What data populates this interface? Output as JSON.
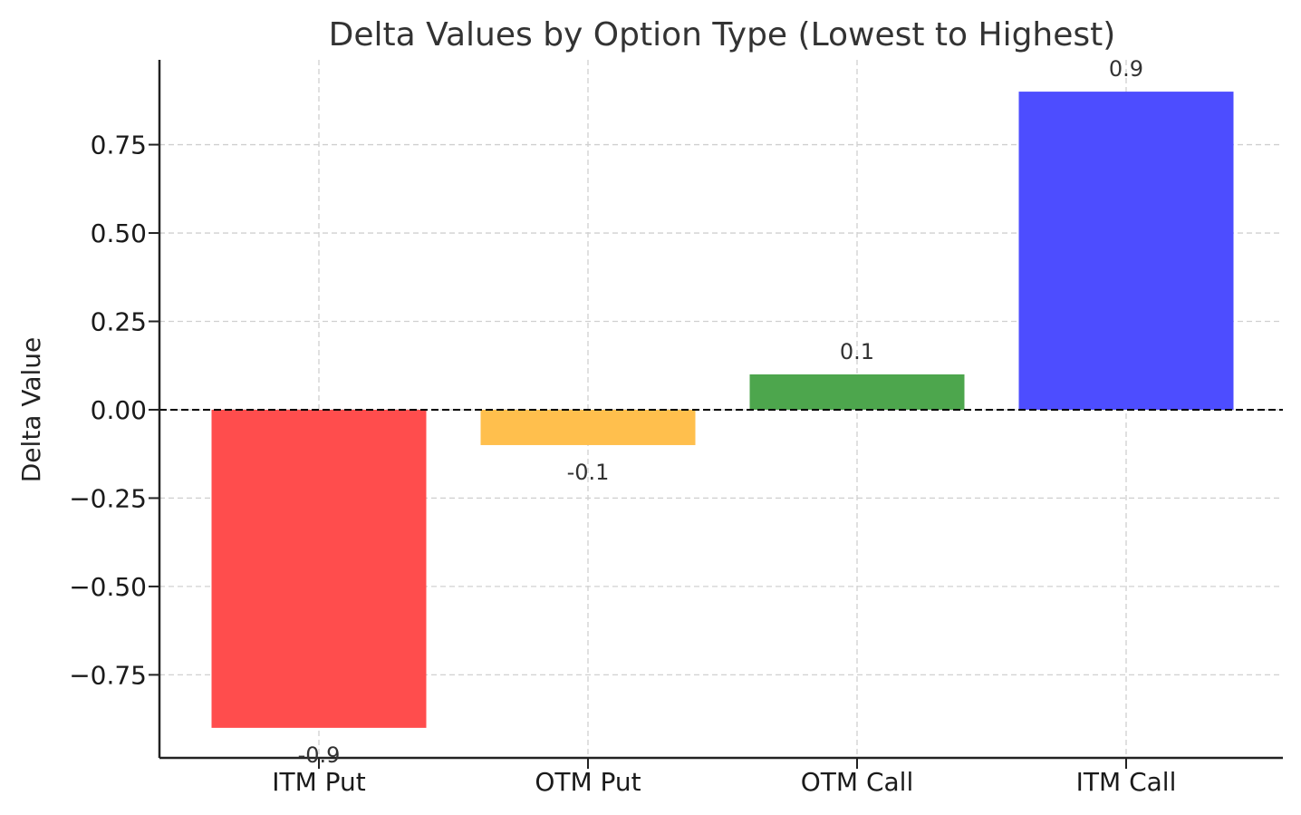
{
  "chart_data": {
    "type": "bar",
    "title": "Delta Values by Option Type (Lowest to Highest)",
    "xlabel": "",
    "ylabel": "Delta Value",
    "categories": [
      "ITM Put",
      "OTM Put",
      "OTM Call",
      "ITM Call"
    ],
    "values": [
      -0.9,
      -0.1,
      0.1,
      0.9
    ],
    "data_labels": [
      "-0.9",
      "-0.1",
      "0.1",
      "0.9"
    ],
    "colors": [
      "#ff4d4d",
      "#ffbf4d",
      "#4da64d",
      "#4d4dff"
    ],
    "ylim": [
      -0.985,
      0.99
    ],
    "yticks": [
      -0.75,
      -0.5,
      -0.25,
      0,
      0.25,
      0.5,
      0.75
    ],
    "ytick_labels": [
      "−0.75",
      "−0.50",
      "−0.25",
      "0.00",
      "0.25",
      "0.50",
      "0.75"
    ],
    "grid": true,
    "zero_line": "dashed"
  }
}
